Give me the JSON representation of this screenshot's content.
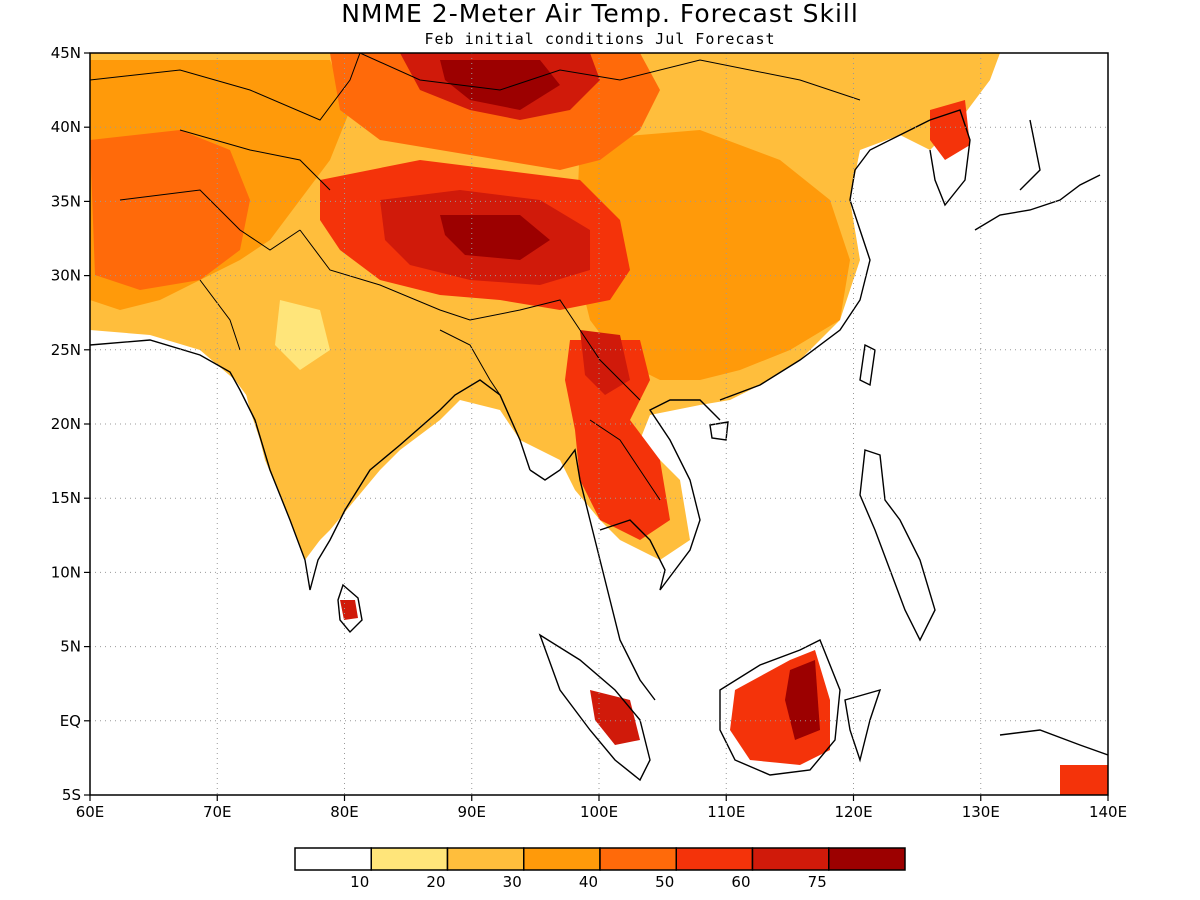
{
  "title": "NMME 2-Meter Air Temp. Forecast Skill",
  "subtitle": "Feb initial conditions  Jul Forecast",
  "map": {
    "lon_range": [
      60,
      140
    ],
    "lat_range": [
      -5,
      45
    ],
    "lon_ticks": [
      {
        "value": 60,
        "label": "60E"
      },
      {
        "value": 70,
        "label": "70E"
      },
      {
        "value": 80,
        "label": "80E"
      },
      {
        "value": 90,
        "label": "90E"
      },
      {
        "value": 100,
        "label": "100E"
      },
      {
        "value": 110,
        "label": "110E"
      },
      {
        "value": 120,
        "label": "120E"
      },
      {
        "value": 130,
        "label": "130E"
      },
      {
        "value": 140,
        "label": "140E"
      }
    ],
    "lat_ticks": [
      {
        "value": 45,
        "label": "45N"
      },
      {
        "value": 40,
        "label": "40N"
      },
      {
        "value": 35,
        "label": "35N"
      },
      {
        "value": 30,
        "label": "30N"
      },
      {
        "value": 25,
        "label": "25N"
      },
      {
        "value": 20,
        "label": "20N"
      },
      {
        "value": 15,
        "label": "15N"
      },
      {
        "value": 10,
        "label": "10N"
      },
      {
        "value": 5,
        "label": "5N"
      },
      {
        "value": 0,
        "label": "EQ"
      },
      {
        "value": -5,
        "label": "5S"
      }
    ],
    "gridlines": "dotted"
  },
  "colorbar": {
    "levels": [
      "10",
      "20",
      "30",
      "40",
      "50",
      "60",
      "75"
    ],
    "colors": [
      "#ffffff",
      "#ffe57a",
      "#ffbe3c",
      "#ff9a0a",
      "#ff6a0a",
      "#f4330a",
      "#d01a0a",
      "#9c0000"
    ]
  },
  "regions": {
    "land_color": "#ffffff",
    "coastline_color": "#000000"
  }
}
